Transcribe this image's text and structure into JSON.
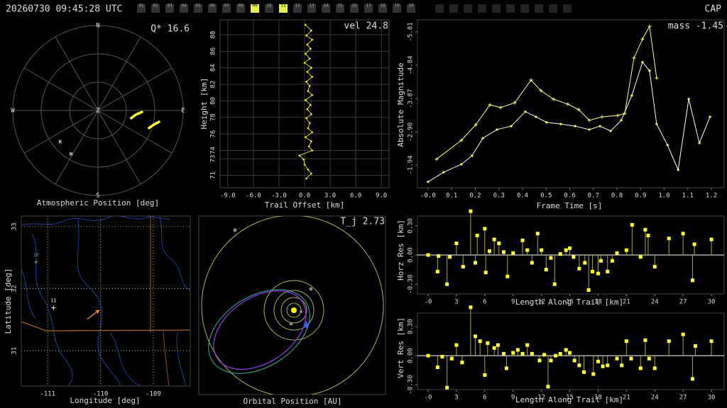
{
  "header": {
    "timestamp": "20260730 09:45:28 UTC",
    "site": "CAP",
    "station_boxes": [
      {
        "label": "01",
        "active": false
      },
      {
        "label": "02",
        "active": false
      },
      {
        "label": "03",
        "active": false
      },
      {
        "label": "04",
        "active": false
      },
      {
        "label": "05",
        "active": false
      },
      {
        "label": "06",
        "active": false
      },
      {
        "label": "07",
        "active": false
      },
      {
        "label": "08",
        "active": false
      },
      {
        "label": "09",
        "active": true
      },
      {
        "label": "10",
        "active": false
      },
      {
        "label": "11",
        "active": true
      },
      {
        "label": "12",
        "active": false
      },
      {
        "label": "13",
        "active": false
      },
      {
        "label": "14",
        "active": false
      },
      {
        "label": "15",
        "active": false
      },
      {
        "label": "16",
        "active": false
      },
      {
        "label": "17",
        "active": false
      },
      {
        "label": "18",
        "active": false
      },
      {
        "label": "19",
        "active": false
      },
      {
        "label": "20",
        "active": false
      }
    ]
  },
  "chart_data": [
    {
      "type": "polar",
      "title": "Atmospheric Position [deg]",
      "annotation": "Q* 16.6",
      "compass": [
        "N",
        "E",
        "S",
        "W"
      ],
      "zenith": "Z",
      "alt_rings": [
        0,
        30,
        60
      ],
      "az_spokes": [
        0,
        30,
        60,
        90,
        120,
        150,
        180,
        210,
        240,
        270,
        300,
        330
      ],
      "series": [
        {
          "color": "#ffff33",
          "az": [
            103,
            96,
            92
          ],
          "values": [
            54,
            49.5,
            43.5
          ]
        },
        {
          "color": "#ffff33",
          "az": [
            109,
            104,
            100.5
          ],
          "values": [
            33,
            28.9,
            24.4
          ]
        }
      ],
      "stations": [
        {
          "label": "R",
          "az": 230,
          "alt": 38
        },
        {
          "label": "M",
          "az": 211.5,
          "alt": 35.5
        }
      ]
    },
    {
      "type": "profile",
      "annotation": "vel 24.8",
      "xlabel": "Trail Offset [km]",
      "ylabel": "Height [km]",
      "color": "#ffff33",
      "grid": true,
      "xlim": [
        -9.9,
        9.9
      ],
      "ylim": [
        69.5,
        89.8
      ],
      "xticks": [
        {
          "value": -9,
          "label": "-9.0"
        },
        {
          "value": -6,
          "label": "-6.0"
        },
        {
          "value": -3,
          "label": "-3.0"
        },
        {
          "value": 0,
          "label": "0.0"
        },
        {
          "value": 3,
          "label": "3.0"
        },
        {
          "value": 6,
          "label": "6.0"
        },
        {
          "value": 9,
          "label": "9.0"
        }
      ],
      "yticks": [
        71,
        73,
        74,
        76,
        78,
        80,
        82,
        84,
        86,
        88
      ],
      "x": [
        0.1,
        0.8,
        0.2,
        0.9,
        0.3,
        0.7,
        0.1,
        0.6,
        0.0,
        0.8,
        0.3,
        0.9,
        0.2,
        0.6,
        0.4,
        0.9,
        0.1,
        0.7,
        0.3,
        0.8,
        0.2,
        0.6,
        0.4,
        0.9,
        0.1,
        0.8,
        0.5,
        0.9,
        -0.6,
        -0.1,
        0.0,
        0.4,
        0.8,
        0.2
      ],
      "values": [
        89.2,
        88.5,
        87.9,
        87.4,
        86.8,
        86.3,
        85.7,
        85.1,
        84.6,
        84.0,
        83.5,
        82.9,
        82.3,
        81.8,
        81.2,
        80.7,
        80.1,
        79.5,
        79.0,
        78.4,
        77.9,
        77.3,
        76.7,
        76.2,
        75.6,
        75.1,
        74.5,
        74.0,
        73.4,
        72.9,
        72.3,
        71.7,
        71.2,
        70.6
      ]
    },
    {
      "type": "line",
      "annotation": "mass -1.45",
      "xlabel": "Frame Time [s]",
      "ylabel": "Absolute Magnitude",
      "grid": false,
      "xlim": [
        -0.045,
        1.254
      ],
      "ylim": [
        -1.28,
        -6.16
      ],
      "xticks": [
        {
          "value": 0,
          "label": "-0.0"
        },
        0.1,
        0.2,
        0.3,
        0.4,
        0.5,
        0.6,
        0.7,
        0.8,
        0.9,
        {
          "value": 1,
          "label": "1.0"
        },
        1.1,
        1.2
      ],
      "yticks": [
        -5.81,
        -4.84,
        -3.87,
        {
          "value": -2.9,
          "label": "-2.90"
        },
        -1.94
      ],
      "series": [
        {
          "color": "#ffff40",
          "line_color": "#ffffff",
          "marker": "dot",
          "x": [
            0.0,
            0.066,
            0.141,
            0.186,
            0.232,
            0.292,
            0.352,
            0.412,
            0.457,
            0.502,
            0.562,
            0.623,
            0.683,
            0.728,
            0.773,
            0.818,
            0.863,
            0.908,
            0.938,
            0.968,
            1.014,
            1.059,
            1.104,
            1.149,
            1.194
          ],
          "values": [
            -1.45,
            -1.73,
            -1.96,
            -2.21,
            -2.72,
            -2.97,
            -3.07,
            -3.49,
            -3.34,
            -3.18,
            -3.13,
            -3.07,
            -2.97,
            -3.07,
            -2.93,
            -3.24,
            -3.96,
            -4.93,
            -4.68,
            -3.13,
            -2.52,
            -1.8,
            -3.86,
            -2.58,
            -3.34
          ]
        },
        {
          "color": "#ffff80",
          "line_color": "#ffff80",
          "marker": "plus",
          "x": [
            0.036,
            0.141,
            0.202,
            0.262,
            0.307,
            0.367,
            0.436,
            0.478,
            0.532,
            0.592,
            0.638,
            0.683,
            0.737,
            0.803,
            0.833,
            0.872,
            0.908,
            0.938,
            0.968
          ],
          "values": [
            -2.11,
            -2.66,
            -3.11,
            -3.69,
            -3.61,
            -3.75,
            -4.41,
            -4.1,
            -3.85,
            -3.71,
            -3.55,
            -3.24,
            -3.34,
            -3.38,
            -3.44,
            -5.05,
            -5.6,
            -5.97,
            -4.47
          ]
        }
      ]
    },
    {
      "type": "map",
      "xlabel": "Longitude [deg]",
      "ylabel": "Latitude [deg]",
      "grid": true,
      "grid_style": "dotted",
      "xlim": [
        -111.5,
        -108.3
      ],
      "ylim": [
        30.43,
        33.17
      ],
      "xticks": [
        -111,
        -110,
        -109
      ],
      "yticks": [
        31,
        32,
        33
      ],
      "stations": [
        {
          "label": "10",
          "lon": -111.22,
          "lat": 32.43,
          "color": "#888888"
        },
        {
          "label": "11",
          "lon": -110.89,
          "lat": 31.69,
          "color": "#ffffff"
        }
      ],
      "track": {
        "color": "#ff9933",
        "lon": [
          -110.25,
          -110.03
        ],
        "lat": [
          31.51,
          31.65
        ]
      }
    },
    {
      "type": "orbit",
      "title": "Orbital Position [AU]",
      "annotation": "T_j 2.73"
    },
    {
      "type": "stem",
      "xlabel": "Length Along Trail [km]",
      "ylabel": "Horz Res [km]",
      "color": "#ffff33",
      "stem_color": "#aaaa44",
      "xlim": [
        -1.13,
        31.35
      ],
      "ylim": [
        -0.4,
        0.4
      ],
      "xticks": [
        {
          "value": 0,
          "label": "-0"
        },
        3,
        6,
        9,
        12,
        15,
        18,
        21,
        24,
        27,
        30
      ],
      "yticks": [
        {
          "value": 0.3,
          "label": "0.30"
        },
        {
          "value": 0,
          "label": "0.00"
        },
        {
          "value": -0.3,
          "label": "-0.30"
        }
      ],
      "x": [
        0,
        1,
        1.1,
        2,
        2.3,
        3,
        3.7,
        4.5,
        5,
        5.2,
        6,
        6.1,
        6.5,
        7,
        7.5,
        8,
        8.4,
        9,
        10,
        10.5,
        11,
        11.6,
        12,
        12.5,
        13,
        13.4,
        14,
        14.6,
        15,
        15.4,
        16,
        16.6,
        17,
        17.4,
        18,
        18.3,
        19,
        19.5,
        20,
        21,
        21.6,
        22.5,
        23,
        23.3,
        24,
        25.5,
        27,
        28,
        28.2,
        30
      ],
      "values": [
        0.0,
        -0.17,
        -0.01,
        -0.3,
        -0.02,
        0.12,
        -0.12,
        0.45,
        -0.08,
        0.2,
        0.27,
        -0.18,
        0.04,
        0.16,
        0.12,
        0.03,
        -0.22,
        0.02,
        0.15,
        0.05,
        -0.08,
        0.22,
        0.05,
        -0.15,
        -0.03,
        -0.3,
        0.01,
        0.05,
        0.07,
        -0.02,
        -0.14,
        -0.08,
        -0.36,
        -0.17,
        -0.19,
        -0.06,
        -0.17,
        -0.06,
        0.02,
        0.05,
        0.31,
        -0.02,
        0.26,
        0.2,
        -0.12,
        0.17,
        0.22,
        -0.26,
        0.11,
        0.16
      ]
    },
    {
      "type": "stem",
      "xlabel": "Length Along Trail [km]",
      "ylabel": "Vert Res [km]",
      "color": "#ffff33",
      "stem_color": "#aaaa44",
      "xlim": [
        -1.13,
        31.35
      ],
      "ylim": [
        -0.35,
        0.44
      ],
      "xticks": [
        {
          "value": 0,
          "label": "-0"
        },
        3,
        6,
        9,
        12,
        15,
        18,
        21,
        24,
        27,
        30
      ],
      "yticks": [
        {
          "value": 0.3,
          "label": "0.30"
        },
        {
          "value": 0,
          "label": "0.00"
        },
        {
          "value": -0.3,
          "label": "-0.30"
        }
      ],
      "x": [
        0,
        1,
        1.5,
        2,
        2.5,
        3,
        3.6,
        4.5,
        5,
        5.5,
        6,
        6.3,
        7,
        7.4,
        8,
        8.3,
        9,
        9.5,
        10,
        10.5,
        11,
        11.8,
        12.3,
        12.7,
        13,
        13.5,
        14,
        14.6,
        15,
        15.5,
        16,
        16.5,
        17.5,
        18,
        18.5,
        19,
        20,
        20.5,
        21,
        21.5,
        22.5,
        23,
        23.4,
        24,
        25.5,
        27,
        28,
        28.3,
        30
      ],
      "values": [
        0.0,
        -0.12,
        -0.01,
        -0.33,
        -0.03,
        0.11,
        -0.07,
        0.5,
        0.2,
        0.15,
        -0.2,
        0.13,
        0.08,
        0.11,
        0.02,
        -0.13,
        0.03,
        0.06,
        0.02,
        0.11,
        0.02,
        -0.05,
        0.01,
        -0.32,
        -0.05,
        0.0,
        0.02,
        0.06,
        0.03,
        -0.05,
        -0.1,
        -0.17,
        -0.19,
        -0.06,
        -0.11,
        -0.1,
        -0.03,
        -0.1,
        0.15,
        -0.03,
        -0.13,
        0.16,
        -0.03,
        -0.13,
        0.15,
        0.22,
        -0.24,
        0.1,
        0.15
      ]
    }
  ]
}
